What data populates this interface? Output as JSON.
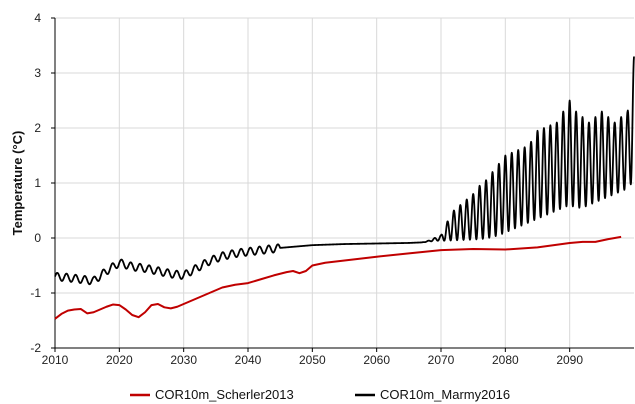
{
  "chart_data": {
    "type": "line",
    "ylabel": "Temperature (°C)",
    "xlim": [
      2010,
      2100
    ],
    "ylim": [
      -2,
      4
    ],
    "x_ticks": [
      2010,
      2020,
      2030,
      2040,
      2050,
      2060,
      2070,
      2080,
      2090
    ],
    "y_ticks": [
      -2,
      -1,
      0,
      1,
      2,
      3,
      4
    ],
    "grid": true,
    "legend_position": "bottom",
    "series": [
      {
        "name": "COR10m_Scherler2013",
        "color": "#c00000",
        "x": [
          2010,
          2011,
          2012,
          2013,
          2014,
          2015,
          2016,
          2017,
          2018,
          2019,
          2020,
          2021,
          2022,
          2023,
          2024,
          2025,
          2026,
          2027,
          2028,
          2029,
          2030,
          2032,
          2034,
          2036,
          2038,
          2040,
          2042,
          2044,
          2046,
          2047,
          2048,
          2049,
          2050,
          2052,
          2055,
          2060,
          2065,
          2070,
          2075,
          2080,
          2085,
          2090,
          2092,
          2094,
          2096,
          2098
        ],
        "values": [
          -1.47,
          -1.38,
          -1.32,
          -1.3,
          -1.29,
          -1.37,
          -1.35,
          -1.3,
          -1.25,
          -1.21,
          -1.22,
          -1.3,
          -1.4,
          -1.44,
          -1.35,
          -1.22,
          -1.2,
          -1.26,
          -1.28,
          -1.25,
          -1.2,
          -1.1,
          -1.0,
          -0.9,
          -0.85,
          -0.82,
          -0.75,
          -0.68,
          -0.62,
          -0.6,
          -0.64,
          -0.6,
          -0.5,
          -0.45,
          -0.41,
          -0.34,
          -0.28,
          -0.22,
          -0.2,
          -0.21,
          -0.17,
          -0.09,
          -0.07,
          -0.07,
          -0.02,
          0.02
        ]
      },
      {
        "name": "COR10m_Marmy2016",
        "color": "#000000",
        "x": [
          2010,
          2012,
          2014,
          2016,
          2018,
          2020,
          2022,
          2024,
          2026,
          2028,
          2030,
          2032,
          2034,
          2036,
          2038,
          2040,
          2045,
          2050,
          2055,
          2060,
          2065,
          2067,
          2068,
          2069,
          2070,
          2071,
          2072,
          2073,
          2074,
          2075,
          2076,
          2077,
          2078,
          2079,
          2080,
          2081,
          2082,
          2083,
          2084,
          2085,
          2086,
          2087,
          2088,
          2089,
          2090,
          2091,
          2092,
          2093,
          2094,
          2095,
          2096,
          2097,
          2098,
          2099,
          2100
        ],
        "values": [
          -0.7,
          -0.72,
          -0.75,
          -0.78,
          -0.6,
          -0.45,
          -0.52,
          -0.55,
          -0.6,
          -0.65,
          -0.68,
          -0.55,
          -0.42,
          -0.33,
          -0.28,
          -0.25,
          -0.18,
          -0.13,
          -0.11,
          -0.1,
          -0.09,
          -0.08,
          -0.05,
          0.0,
          0.05,
          0.3,
          0.5,
          0.6,
          0.7,
          0.8,
          0.95,
          1.05,
          1.2,
          1.35,
          1.5,
          1.55,
          1.6,
          1.65,
          1.75,
          1.95,
          2.0,
          2.05,
          2.1,
          2.3,
          2.5,
          2.3,
          2.2,
          2.1,
          2.2,
          2.3,
          2.2,
          2.1,
          2.2,
          2.3,
          3.3
        ],
        "low_values": [
          -0.7,
          -0.72,
          -0.75,
          -0.78,
          -0.6,
          -0.45,
          -0.52,
          -0.55,
          -0.6,
          -0.65,
          -0.68,
          -0.55,
          -0.42,
          -0.33,
          -0.28,
          -0.25,
          -0.18,
          -0.13,
          -0.11,
          -0.1,
          -0.09,
          -0.08,
          -0.07,
          -0.05,
          -0.05,
          -0.05,
          -0.04,
          -0.04,
          -0.03,
          -0.03,
          -0.02,
          -0.01,
          0.02,
          0.05,
          0.1,
          0.15,
          0.2,
          0.25,
          0.3,
          0.35,
          0.4,
          0.45,
          0.5,
          0.55,
          0.6,
          0.55,
          0.55,
          0.6,
          0.65,
          0.7,
          0.75,
          0.8,
          0.85,
          0.9,
          1.05
        ]
      }
    ]
  }
}
